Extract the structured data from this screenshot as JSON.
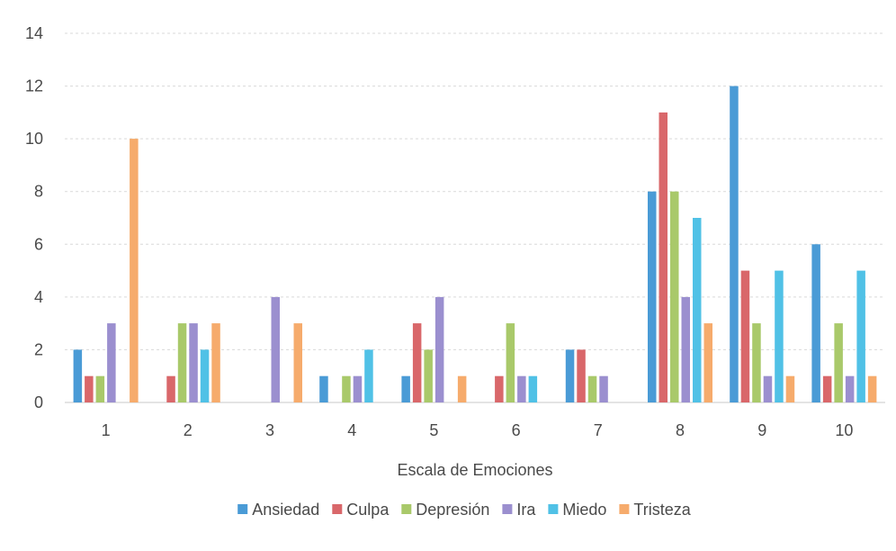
{
  "chart_data": {
    "type": "bar",
    "title": "",
    "xlabel": "Escala de Emociones",
    "ylabel": "",
    "categories": [
      "1",
      "2",
      "3",
      "4",
      "5",
      "6",
      "7",
      "8",
      "9",
      "10"
    ],
    "ylim": [
      0,
      14
    ],
    "yticks": [
      "0",
      "2",
      "4",
      "6",
      "8",
      "10",
      "12",
      "14"
    ],
    "grid": true,
    "legend_position": "bottom",
    "series": [
      {
        "name": "Ansiedad",
        "color": "#4a9bd6",
        "values": [
          2,
          0,
          0,
          1,
          1,
          0,
          2,
          8,
          12,
          6
        ]
      },
      {
        "name": "Culpa",
        "color": "#d9676a",
        "values": [
          1,
          1,
          0,
          0,
          3,
          1,
          2,
          11,
          5,
          1
        ]
      },
      {
        "name": "Depresión",
        "color": "#a9c96a",
        "values": [
          1,
          3,
          0,
          1,
          2,
          3,
          1,
          8,
          3,
          3
        ]
      },
      {
        "name": "Ira",
        "color": "#9b8fcf",
        "values": [
          3,
          3,
          4,
          1,
          4,
          1,
          1,
          4,
          1,
          1
        ]
      },
      {
        "name": "Miedo",
        "color": "#50c1e6",
        "values": [
          0,
          2,
          0,
          2,
          0,
          1,
          0,
          7,
          5,
          5
        ]
      },
      {
        "name": "Tristeza",
        "color": "#f6ab6c",
        "values": [
          10,
          3,
          3,
          0,
          1,
          0,
          0,
          3,
          1,
          1
        ]
      }
    ]
  }
}
